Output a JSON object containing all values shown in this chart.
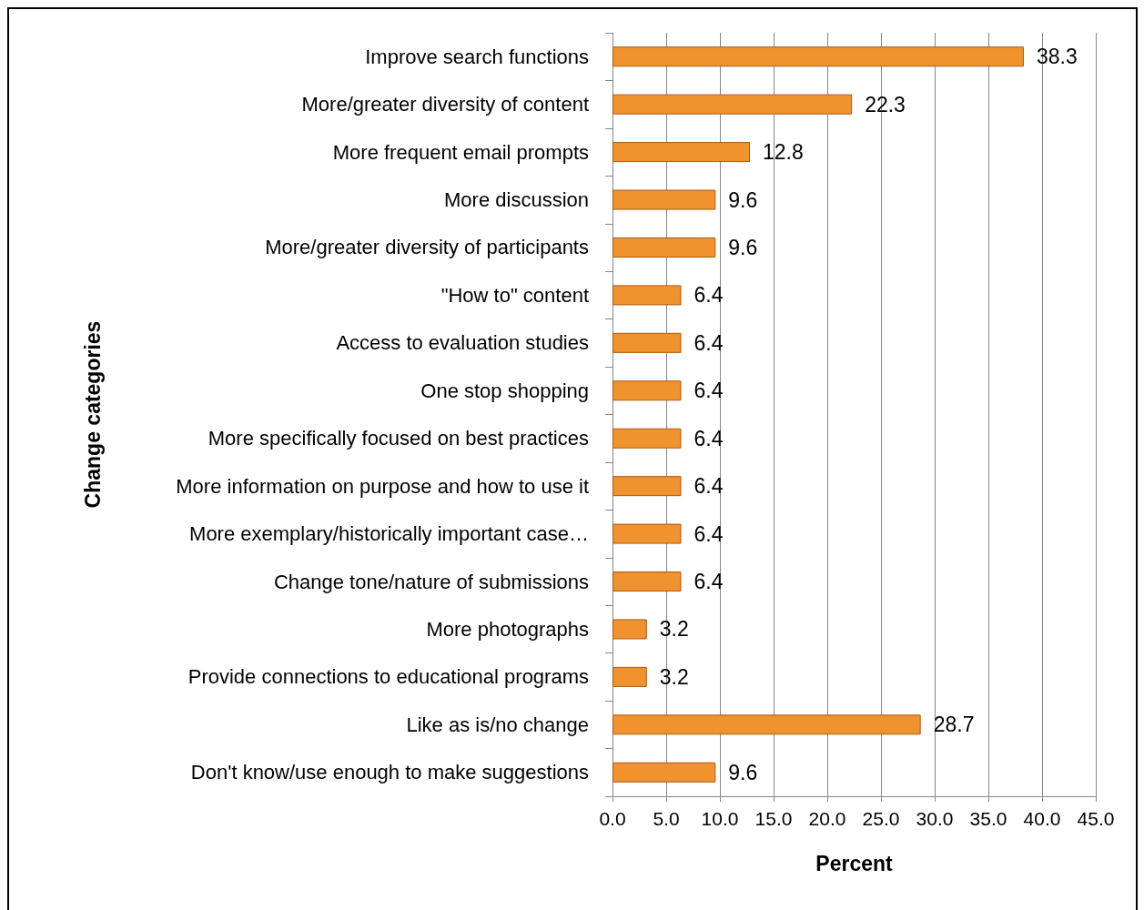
{
  "chart_data": {
    "type": "bar",
    "orientation": "horizontal",
    "xlabel": "Percent",
    "ylabel": "Change categories",
    "categories": [
      "Improve search functions",
      "More/greater diversity of content",
      "More frequent email prompts",
      "More discussion",
      "More/greater diversity of participants",
      "\"How to\" content",
      "Access to evaluation studies",
      "One stop shopping",
      "More specifically focused on best practices",
      "More information on purpose and how to use it",
      "More exemplary/historically important case…",
      "Change tone/nature of submissions",
      "More photographs",
      "Provide connections to educational programs",
      "Like as is/no change",
      "Don't know/use enough to make suggestions"
    ],
    "values": [
      38.3,
      22.3,
      12.8,
      9.6,
      9.6,
      6.4,
      6.4,
      6.4,
      6.4,
      6.4,
      6.4,
      6.4,
      3.2,
      3.2,
      28.7,
      9.6
    ],
    "color": "#f0922e",
    "xlim": [
      0,
      45
    ],
    "xticks": [
      {
        "value": 0,
        "label": "0.0"
      },
      {
        "value": 5,
        "label": "5.0"
      },
      {
        "value": 10,
        "label": "10.0"
      },
      {
        "value": 15,
        "label": "15.0"
      },
      {
        "value": 20,
        "label": "20.0"
      },
      {
        "value": 25,
        "label": "25.0"
      },
      {
        "value": 30,
        "label": "30.0"
      },
      {
        "value": 35,
        "label": "35.0"
      },
      {
        "value": 40,
        "label": "40.0"
      },
      {
        "value": 45,
        "label": "45.0"
      }
    ],
    "grid": "x",
    "data_labels": true
  }
}
